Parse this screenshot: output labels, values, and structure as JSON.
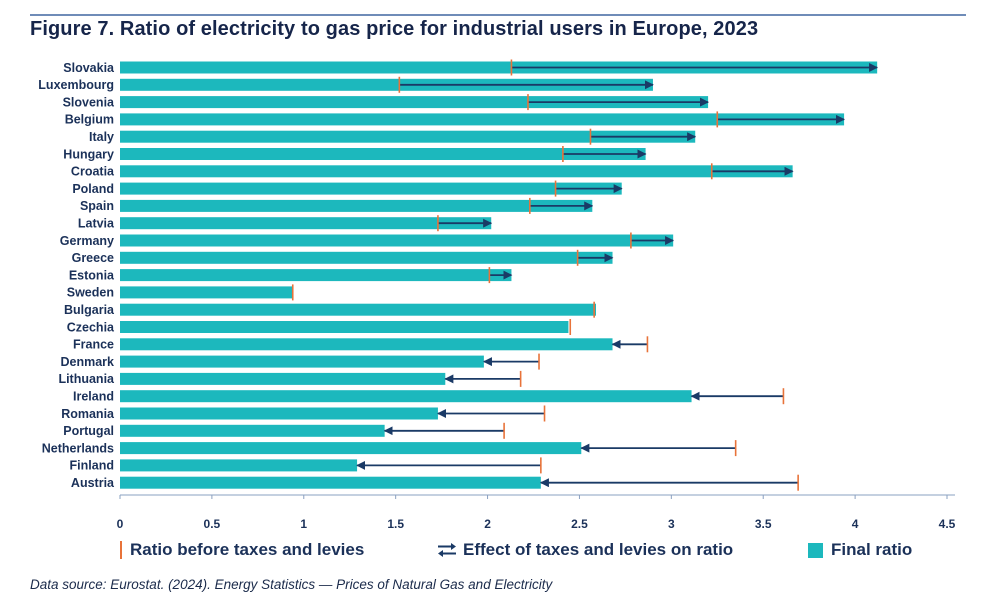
{
  "title": "Figure 7. Ratio of electricity to gas price for industrial users in Europe, 2023",
  "source": "Data source: Eurostat. (2024). Energy Statistics — Prices of Natural Gas and Electricity",
  "legend": {
    "before_label": "Ratio before taxes and levies",
    "effect_label": "Effect of taxes and levies on ratio",
    "final_label": "Final ratio"
  },
  "colors": {
    "bar": "#1cb8bd",
    "before_tick": "#e8733a",
    "arrow": "#1a3a66",
    "text": "#1b3159"
  },
  "chart_data": {
    "type": "bar",
    "orientation": "horizontal",
    "title": "Figure 7. Ratio of electricity to gas price for industrial users in Europe, 2023",
    "xlabel": "",
    "ylabel": "",
    "xlim": [
      0,
      4.5
    ],
    "x_ticks": [
      0,
      0.5,
      1,
      1.5,
      2,
      2.5,
      3,
      3.5,
      4,
      4.5
    ],
    "x_tick_labels": [
      "0",
      "0.5",
      "1",
      "1.5",
      "2",
      "2.5",
      "3",
      "3.5",
      "4",
      "4.5"
    ],
    "categories": [
      "Slovakia",
      "Luxembourg",
      "Slovenia",
      "Belgium",
      "Italy",
      "Hungary",
      "Croatia",
      "Poland",
      "Spain",
      "Latvia",
      "Germany",
      "Greece",
      "Estonia",
      "Sweden",
      "Bulgaria",
      "Czechia",
      "France",
      "Denmark",
      "Lithuania",
      "Ireland",
      "Romania",
      "Portugal",
      "Netherlands",
      "Finland",
      "Austria"
    ],
    "series": [
      {
        "name": "Final ratio",
        "values": [
          4.12,
          2.9,
          3.2,
          3.94,
          3.13,
          2.86,
          3.66,
          2.73,
          2.57,
          2.02,
          3.01,
          2.68,
          2.13,
          0.94,
          2.59,
          2.44,
          2.68,
          1.98,
          1.77,
          3.11,
          1.73,
          1.44,
          2.51,
          1.29,
          2.29
        ]
      },
      {
        "name": "Ratio before taxes and levies",
        "values": [
          2.13,
          1.52,
          2.22,
          3.25,
          2.56,
          2.41,
          3.22,
          2.37,
          2.23,
          1.73,
          2.78,
          2.49,
          2.01,
          0.94,
          2.58,
          2.45,
          2.87,
          2.28,
          2.18,
          3.61,
          2.31,
          2.09,
          3.35,
          2.29,
          3.69
        ]
      }
    ],
    "legend_position": "bottom"
  }
}
